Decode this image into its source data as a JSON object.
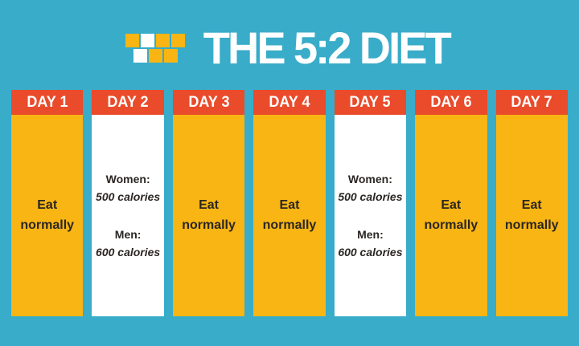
{
  "header": {
    "title": "THE 5:2 DIET",
    "logo": {
      "rows": [
        [
          "yellow",
          "white",
          "yellow",
          "yellow"
        ],
        [
          "white",
          "yellow",
          "yellow"
        ]
      ]
    }
  },
  "colors": {
    "background": "#38ACC9",
    "yellow": "#F8B513",
    "red": "#E94B2B",
    "white": "#FFFFFF",
    "text_dark": "#2B2623"
  },
  "days": [
    {
      "label": "DAY 1",
      "type": "normal",
      "body": "Eat normally"
    },
    {
      "label": "DAY 2",
      "type": "fast",
      "groups": [
        {
          "label": "Women:",
          "value": "500 calories"
        },
        {
          "label": "Men:",
          "value": "600 calories"
        }
      ]
    },
    {
      "label": "DAY 3",
      "type": "normal",
      "body": "Eat normally"
    },
    {
      "label": "DAY 4",
      "type": "normal",
      "body": "Eat normally"
    },
    {
      "label": "DAY 5",
      "type": "fast",
      "groups": [
        {
          "label": "Women:",
          "value": "500 calories"
        },
        {
          "label": "Men:",
          "value": "600 calories"
        }
      ]
    },
    {
      "label": "DAY 6",
      "type": "normal",
      "body": "Eat normally"
    },
    {
      "label": "DAY 7",
      "type": "normal",
      "body": "Eat normally"
    }
  ]
}
